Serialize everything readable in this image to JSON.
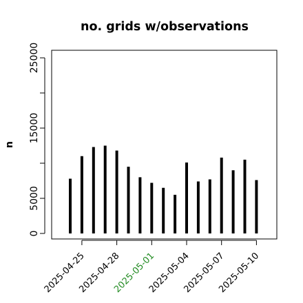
{
  "chart_data": {
    "type": "bar",
    "title": "no. grids w/observations",
    "ylabel": "n",
    "xlabel": "",
    "ylim": [
      0,
      26000
    ],
    "yticks": [
      0,
      5000,
      10000,
      15000,
      20000,
      25000
    ],
    "ytick_labels": [
      "0",
      "5000",
      "",
      "15000",
      "",
      "25000"
    ],
    "categories": [
      "2025-04-24",
      "2025-04-25",
      "2025-04-26",
      "2025-04-27",
      "2025-04-28",
      "2025-04-29",
      "2025-04-30",
      "2025-05-01",
      "2025-05-02",
      "2025-05-03",
      "2025-05-04",
      "2025-05-05",
      "2025-05-06",
      "2025-05-07",
      "2025-05-08",
      "2025-05-09",
      "2025-05-10"
    ],
    "values": [
      7800,
      11000,
      12300,
      12500,
      11800,
      9500,
      8000,
      7200,
      6500,
      5500,
      10100,
      7400,
      7700,
      10800,
      9000,
      10500,
      7600
    ],
    "xticks": [
      "2025-04-25",
      "2025-04-28",
      "2025-05-01",
      "2025-05-04",
      "2025-05-07",
      "2025-05-10"
    ],
    "highlight_tick": "2025-05-01",
    "colors": {
      "bars": "#000000",
      "tick_text": "#000000",
      "highlight_text": "#228b22"
    },
    "grid": false
  }
}
